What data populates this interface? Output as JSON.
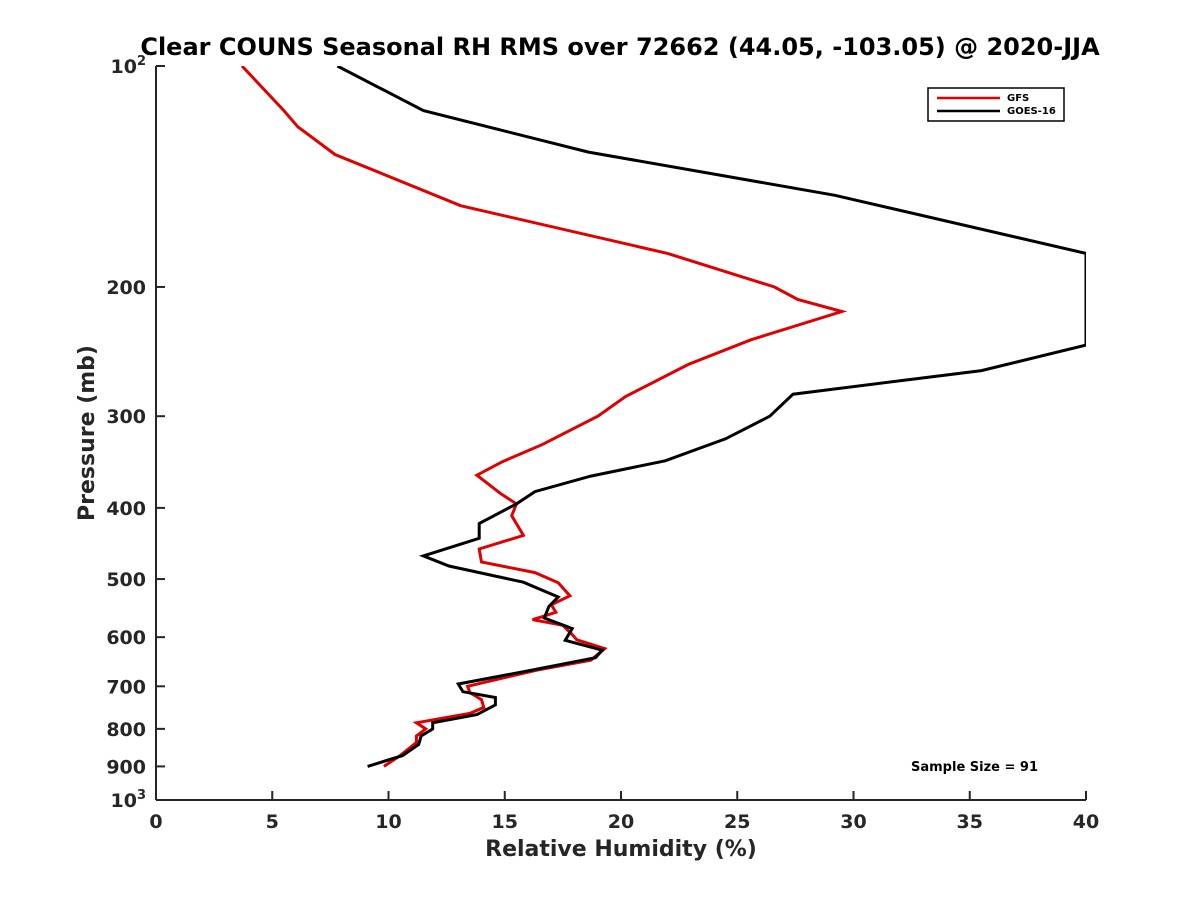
{
  "chart_data": {
    "type": "line",
    "title": "Clear COUNS Seasonal RH RMS over 72662 (44.05, -103.05) @ 2020-JJA",
    "xlabel": "Relative Humidity (%)",
    "ylabel": "Pressure (mb)",
    "xlim": [
      0,
      40
    ],
    "ylim": [
      100,
      1000
    ],
    "yscale": "log",
    "y_reversed": true,
    "grid": false,
    "x_ticks": [
      {
        "value": 0,
        "label": "0"
      },
      {
        "value": 5,
        "label": "5"
      },
      {
        "value": 10,
        "label": "10"
      },
      {
        "value": 15,
        "label": "15"
      },
      {
        "value": 20,
        "label": "20"
      },
      {
        "value": 25,
        "label": "25"
      },
      {
        "value": 30,
        "label": "30"
      },
      {
        "value": 35,
        "label": "35"
      },
      {
        "value": 40,
        "label": "40"
      }
    ],
    "y_ticks": [
      {
        "value": 100,
        "base": "10",
        "exp": "2"
      },
      {
        "value": 200,
        "base": "200",
        "exp": ""
      },
      {
        "value": 300,
        "base": "300",
        "exp": ""
      },
      {
        "value": 400,
        "base": "400",
        "exp": ""
      },
      {
        "value": 500,
        "base": "500",
        "exp": ""
      },
      {
        "value": 600,
        "base": "600",
        "exp": ""
      },
      {
        "value": 700,
        "base": "700",
        "exp": ""
      },
      {
        "value": 800,
        "base": "800",
        "exp": ""
      },
      {
        "value": 900,
        "base": "900",
        "exp": ""
      },
      {
        "value": 1000,
        "base": "10",
        "exp": "3"
      }
    ],
    "legend_position": "top-right",
    "series": [
      {
        "name": "GFS",
        "color": "#e00000",
        "points": [
          [
            3.7,
            100
          ],
          [
            5.5,
            115
          ],
          [
            6.1,
            121
          ],
          [
            7.7,
            132
          ],
          [
            13.1,
            155
          ],
          [
            22.0,
            180
          ],
          [
            26.6,
            200
          ],
          [
            27.6,
            208
          ],
          [
            29.5,
            216
          ],
          [
            25.6,
            236
          ],
          [
            22.9,
            255
          ],
          [
            20.2,
            282
          ],
          [
            19.0,
            300
          ],
          [
            16.6,
            328
          ],
          [
            14.9,
            346
          ],
          [
            13.8,
            361
          ],
          [
            14.8,
            382
          ],
          [
            15.5,
            395
          ],
          [
            15.3,
            410
          ],
          [
            15.8,
            436
          ],
          [
            13.9,
            455
          ],
          [
            14.0,
            474
          ],
          [
            16.3,
            490
          ],
          [
            17.3,
            506
          ],
          [
            17.8,
            527
          ],
          [
            17.0,
            542
          ],
          [
            17.2,
            555
          ],
          [
            16.2,
            568
          ],
          [
            17.5,
            578
          ],
          [
            17.9,
            595
          ],
          [
            18.1,
            605
          ],
          [
            19.3,
            622
          ],
          [
            18.7,
            645
          ],
          [
            16.4,
            665
          ],
          [
            13.4,
            700
          ],
          [
            13.5,
            714
          ],
          [
            14.0,
            730
          ],
          [
            14.1,
            748
          ],
          [
            13.5,
            762
          ],
          [
            11.2,
            785
          ],
          [
            11.6,
            800
          ],
          [
            11.2,
            818
          ],
          [
            11.2,
            835
          ],
          [
            10.9,
            850
          ],
          [
            10.5,
            870
          ],
          [
            9.8,
            900
          ]
        ]
      },
      {
        "name": "GOES-16",
        "color": "#000000",
        "points": [
          [
            7.8,
            100
          ],
          [
            11.5,
            115
          ],
          [
            18.6,
            131
          ],
          [
            29.2,
            150
          ],
          [
            40.0,
            180
          ],
          [
            40.0,
            240
          ],
          [
            35.5,
            260
          ],
          [
            27.4,
            280
          ],
          [
            26.4,
            300
          ],
          [
            24.5,
            322
          ],
          [
            21.9,
            345
          ],
          [
            18.7,
            362
          ],
          [
            16.3,
            380
          ],
          [
            15.5,
            395
          ],
          [
            13.9,
            420
          ],
          [
            13.9,
            440
          ],
          [
            11.5,
            465
          ],
          [
            12.6,
            480
          ],
          [
            15.8,
            505
          ],
          [
            17.3,
            529
          ],
          [
            16.9,
            545
          ],
          [
            16.7,
            565
          ],
          [
            17.9,
            584
          ],
          [
            17.6,
            606
          ],
          [
            19.2,
            625
          ],
          [
            18.9,
            640
          ],
          [
            16.2,
            665
          ],
          [
            13.0,
            695
          ],
          [
            13.2,
            712
          ],
          [
            14.6,
            725
          ],
          [
            14.6,
            742
          ],
          [
            13.8,
            765
          ],
          [
            11.9,
            785
          ],
          [
            11.9,
            800
          ],
          [
            11.4,
            818
          ],
          [
            11.3,
            840
          ],
          [
            10.6,
            870
          ],
          [
            9.1,
            900
          ]
        ]
      }
    ],
    "annotations": [
      {
        "text": "Sample Size = 91",
        "at_x": 32.5,
        "at_p": 900
      }
    ]
  }
}
